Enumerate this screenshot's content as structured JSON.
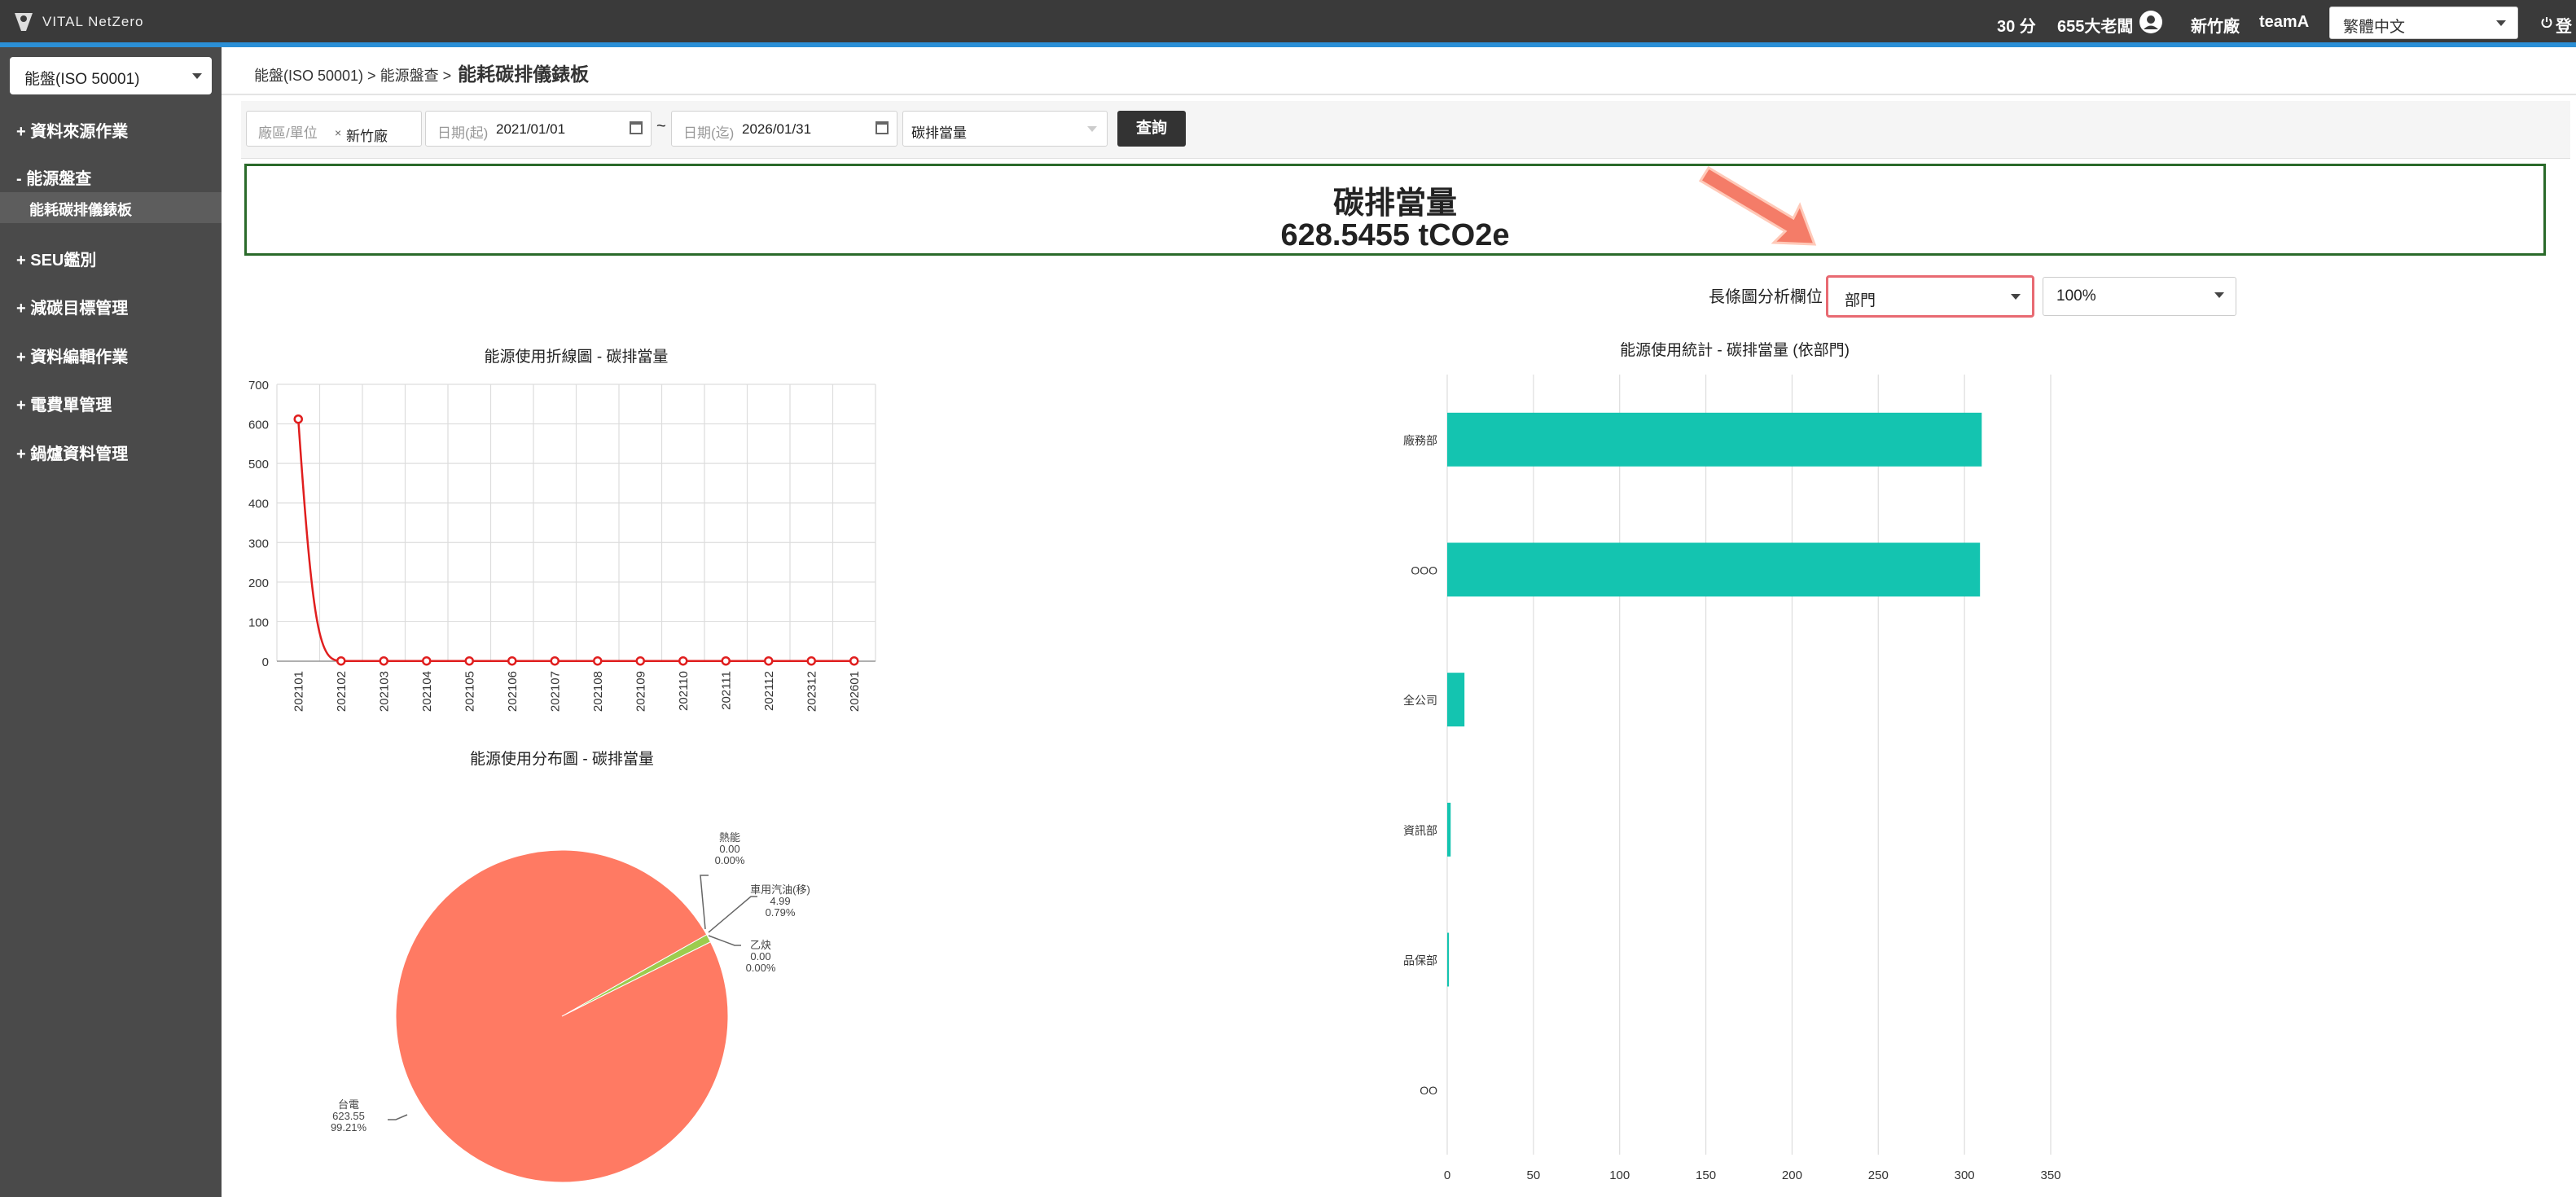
{
  "topbar": {
    "logo": "VITAL NetZero",
    "points": "30 分",
    "user": "655大老闆",
    "site": "新竹廠",
    "team": "teamA",
    "language": "繁體中文",
    "logout": "登"
  },
  "sidebar": {
    "system_select": "能盤(ISO 50001)",
    "items": [
      {
        "label": "資料來源作業",
        "expanded": false
      },
      {
        "label": "能源盤查",
        "expanded": true
      },
      {
        "label": "SEU鑑別",
        "expanded": false
      },
      {
        "label": "減碳目標管理",
        "expanded": false
      },
      {
        "label": "資料編輯作業",
        "expanded": false
      },
      {
        "label": "電費單管理",
        "expanded": false
      },
      {
        "label": "鍋爐資料管理",
        "expanded": false
      }
    ],
    "sub_item": "能耗碳排儀錶板"
  },
  "breadcrumb": {
    "path": "能盤(ISO 50001) > 能源盤查 >",
    "current": "能耗碳排儀錶板"
  },
  "filters": {
    "site_label": "廠區/單位",
    "site_tag": "新竹廠",
    "start_label": "日期(起)",
    "start_value": "2021/01/01",
    "tilde": "~",
    "end_label": "日期(迄)",
    "end_value": "2026/01/31",
    "metric": "碳排當量",
    "query_button": "查詢"
  },
  "summary": {
    "title": "碳排當量",
    "value": "628.5455 tCO2e"
  },
  "bar_controls": {
    "field_label": "長條圖分析欄位",
    "field_value": "部門",
    "percent_value": "100%"
  },
  "colors": {
    "line": "#e01e1e",
    "pie_main": "#ff7a63",
    "pie_minor": "#9ccc4e",
    "bar": "#14c4b0",
    "highlight_border": "#e86a72"
  },
  "chart_data": [
    {
      "type": "line",
      "title": "能源使用折線圖 - 碳排當量",
      "x": [
        "202101",
        "202102",
        "202103",
        "202104",
        "202105",
        "202106",
        "202107",
        "202108",
        "202109",
        "202110",
        "202111",
        "202112",
        "202312",
        "202601"
      ],
      "series": [
        {
          "values": [
            612,
            0.6,
            0.6,
            0.6,
            0.6,
            0.6,
            0.6,
            0.6,
            0.6,
            0.6,
            0.6,
            0.6,
            0.6,
            0.6
          ]
        }
      ],
      "ylim": [
        0,
        700
      ],
      "yticks": [
        "0",
        "100",
        "200",
        "300",
        "400",
        "500",
        "600",
        "700"
      ],
      "grid": true
    },
    {
      "type": "pie",
      "title": "能源使用分布圖 - 碳排當量",
      "slices": [
        {
          "name": "台電",
          "value": "623.55",
          "percent": "99.21%",
          "num": 623.55
        },
        {
          "name": "熱能",
          "value": "0.00",
          "percent": "0.00%",
          "num": 0
        },
        {
          "name": "車用汽油(移)",
          "value": "4.99",
          "percent": "0.79%",
          "num": 4.99
        },
        {
          "name": "乙炔",
          "value": "0.00",
          "percent": "0.00%",
          "num": 0
        }
      ]
    },
    {
      "type": "bar",
      "orientation": "horizontal",
      "title": "能源使用統計 - 碳排當量 (依部門)",
      "categories": [
        "廠務部",
        "OOO",
        "全公司",
        "資訊部",
        "品保部",
        "OO"
      ],
      "values": [
        310,
        309,
        10,
        2,
        1,
        0
      ],
      "xlim": [
        0,
        350
      ],
      "xticks": [
        "0",
        "50",
        "100",
        "150",
        "200",
        "250",
        "300",
        "350"
      ],
      "grid": true
    }
  ]
}
